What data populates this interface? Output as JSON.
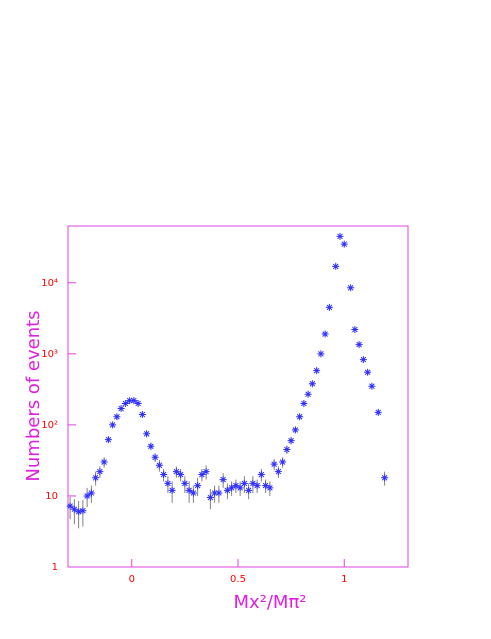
{
  "chart_data": {
    "type": "scatter",
    "x_label": "Mx²/Mπ²",
    "y_label": "Numbers of events",
    "log_y": true,
    "color": "#2f2fff",
    "error_color": "#808080",
    "xlim": [
      -0.3,
      1.3
    ],
    "ylim": [
      1,
      63000
    ],
    "xticks": [
      0,
      0.5,
      1
    ],
    "yticks": [
      1,
      10,
      {
        "value": 100,
        "label": "10²"
      },
      {
        "value": 1000,
        "label": "10³"
      },
      {
        "value": 10000,
        "label": "10⁴"
      }
    ],
    "x": [
      -0.29,
      -0.27,
      -0.25,
      -0.23,
      -0.21,
      -0.19,
      -0.17,
      -0.15,
      -0.13,
      -0.11,
      -0.09,
      -0.07,
      -0.05,
      -0.03,
      -0.01,
      0.01,
      0.03,
      0.05,
      0.07,
      0.09,
      0.11,
      0.13,
      0.15,
      0.17,
      0.19,
      0.21,
      0.23,
      0.25,
      0.27,
      0.29,
      0.31,
      0.33,
      0.35,
      0.37,
      0.39,
      0.41,
      0.43,
      0.45,
      0.47,
      0.49,
      0.51,
      0.53,
      0.55,
      0.57,
      0.59,
      0.61,
      0.63,
      0.65,
      0.67,
      0.69,
      0.71,
      0.73,
      0.75,
      0.77,
      0.79,
      0.81,
      0.83,
      0.85,
      0.87,
      0.89,
      0.91,
      0.93,
      0.96,
      0.98,
      1.0,
      1.03,
      1.05,
      1.07,
      1.09,
      1.11,
      1.13,
      1.16,
      1.19
    ],
    "values": [
      7.2,
      6.5,
      6,
      6.2,
      10,
      11,
      18,
      22,
      30,
      62,
      100,
      130,
      170,
      200,
      220,
      220,
      200,
      140,
      75,
      50,
      35,
      27,
      20,
      15,
      12,
      22,
      20,
      15,
      12,
      11,
      14,
      20,
      22,
      9.5,
      11,
      11,
      17,
      12,
      13,
      14,
      13,
      15,
      12,
      15,
      14,
      20,
      14,
      13,
      28,
      22,
      30,
      45,
      60,
      85,
      130,
      200,
      270,
      380,
      580,
      1000,
      1900,
      4500,
      17000,
      45000,
      35000,
      8500,
      2200,
      1350,
      830,
      550,
      350,
      150,
      18
    ],
    "errors": [
      2.5,
      2.5,
      2.5,
      2.5,
      3,
      3,
      4,
      4,
      5,
      6,
      8,
      10,
      12,
      12,
      14,
      14,
      12,
      10,
      8,
      6,
      5,
      5,
      4,
      4,
      4,
      4,
      4,
      4,
      4,
      3,
      4,
      4,
      5,
      3,
      3,
      3,
      4,
      3,
      3,
      3,
      3,
      4,
      3,
      4,
      3,
      4,
      3,
      3,
      5,
      4,
      5,
      6,
      7,
      8,
      10,
      12,
      14,
      18,
      22,
      30,
      40,
      60,
      130,
      200,
      180,
      90,
      45,
      35,
      28,
      22,
      18,
      12,
      4
    ]
  }
}
